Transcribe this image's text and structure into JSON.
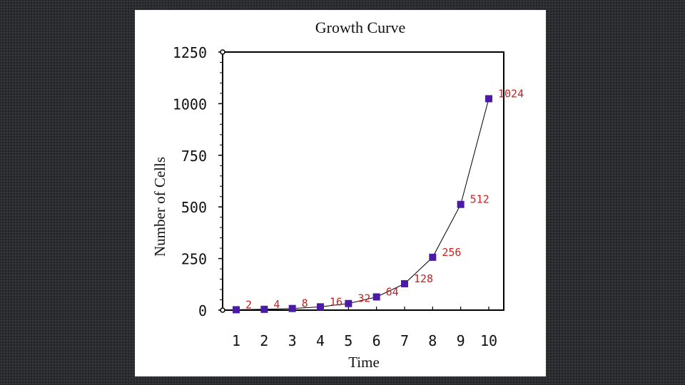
{
  "chart_data": {
    "type": "line",
    "title": "Growth Curve",
    "xlabel": "Time",
    "ylabel": "Number of Cells",
    "x": [
      1,
      2,
      3,
      4,
      5,
      6,
      7,
      8,
      9,
      10
    ],
    "x_positions": [
      1,
      2,
      3,
      4,
      5,
      6,
      7,
      8,
      9,
      10
    ],
    "values": [
      2,
      4,
      8,
      16,
      32,
      64,
      128,
      256,
      512,
      1024
    ],
    "data_labels": [
      "2",
      "4",
      "8",
      "16",
      "32",
      "64",
      "128",
      "256",
      "512",
      "1024"
    ],
    "xticks": [
      "1",
      "2",
      "3",
      "4",
      "5",
      "6",
      "7",
      "8",
      "9",
      "10"
    ],
    "yticks": [
      "0",
      "250",
      "500",
      "750",
      "1000",
      "1250"
    ],
    "ylim": [
      0,
      1250
    ],
    "grid": false,
    "legend": "none",
    "colors": {
      "marker": "#4b1aa6",
      "line": "#000000",
      "label": "#cc1f1f",
      "background": "#ffffff"
    }
  }
}
